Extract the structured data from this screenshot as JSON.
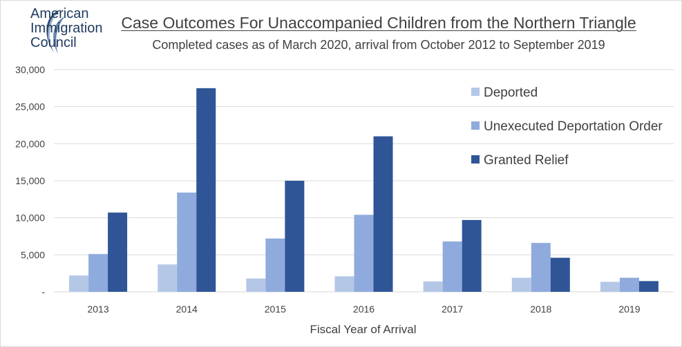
{
  "logo": {
    "lines": [
      "American",
      "Immigration",
      "Council"
    ]
  },
  "colors": {
    "deported": "#b4c7e7",
    "unexecuted": "#8faadc",
    "granted": "#2f5597",
    "grid": "#d9d9d9",
    "logo_swirl": "#2f4a73"
  },
  "chart_data": {
    "type": "bar",
    "title": "Case Outcomes For Unaccompanied Children from the Northern Triangle",
    "subtitle": "Completed cases as of March 2020, arrival from October 2012 to September 2019",
    "xlabel": "Fiscal Year of Arrival",
    "ylabel": "",
    "ylim": [
      0,
      30000
    ],
    "yticks": [
      0,
      5000,
      10000,
      15000,
      20000,
      25000,
      30000
    ],
    "ytick_labels": [
      "-",
      "5,000",
      "10,000",
      "15,000",
      "20,000",
      "25,000",
      "30,000"
    ],
    "categories": [
      "2013",
      "2014",
      "2015",
      "2016",
      "2017",
      "2018",
      "2019"
    ],
    "series": [
      {
        "name": "Deported",
        "color_key": "deported",
        "values": [
          2200,
          3700,
          1800,
          2100,
          1400,
          1900,
          1350
        ]
      },
      {
        "name": "Unexecuted Deportation Order",
        "color_key": "unexecuted",
        "values": [
          5100,
          13400,
          7200,
          10400,
          6800,
          6600,
          1900
        ]
      },
      {
        "name": "Granted Relief",
        "color_key": "granted",
        "values": [
          10700,
          27500,
          15000,
          21000,
          9700,
          4600,
          1450
        ]
      }
    ],
    "grid": true,
    "legend_position": "top-right"
  }
}
